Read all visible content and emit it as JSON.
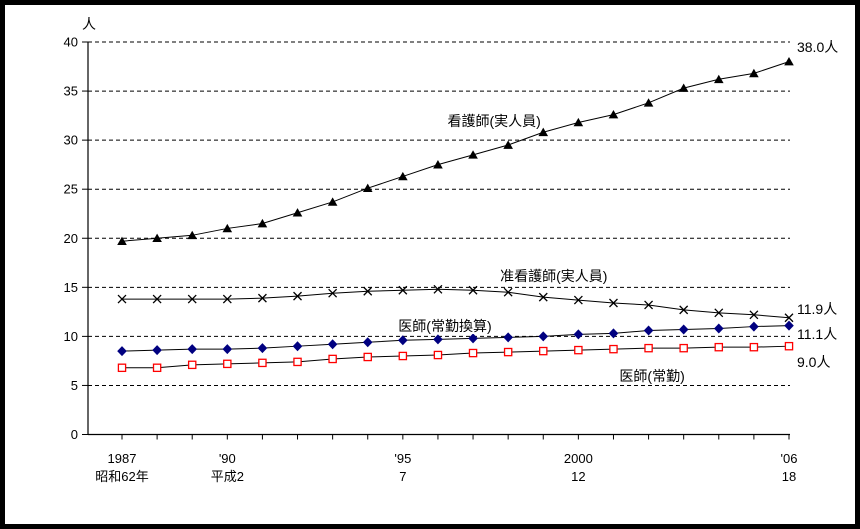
{
  "chart_data": {
    "type": "line",
    "title": "",
    "y_axis_unit": "人",
    "ylim": [
      0,
      40
    ],
    "y_ticks": [
      0,
      5,
      10,
      15,
      20,
      25,
      30,
      35,
      40
    ],
    "grid": "horizontal-dashed",
    "legend_position": "inline-labels",
    "x_years": [
      1987,
      1988,
      1989,
      1990,
      1991,
      1992,
      1993,
      1994,
      1995,
      1996,
      1997,
      1998,
      1999,
      2000,
      2001,
      2002,
      2003,
      2004,
      2005,
      2006
    ],
    "x_ticks": [
      {
        "year": 1987,
        "label": "1987",
        "era_label": "昭和62年"
      },
      {
        "year": 1990,
        "label": "'90",
        "era_label": "平成2"
      },
      {
        "year": 1995,
        "label": "'95",
        "era_label": "7"
      },
      {
        "year": 2000,
        "label": "2000",
        "era_label": "12"
      },
      {
        "year": 2006,
        "label": "'06",
        "era_label": "18"
      }
    ],
    "series": [
      {
        "id": "nurses_actual",
        "label": "看護師(実人員)",
        "end_label": "38.0人",
        "marker": "triangle",
        "marker_color": "#000000",
        "line_color": "#000000",
        "values": [
          19.7,
          20.0,
          20.3,
          21.0,
          21.5,
          22.6,
          23.7,
          25.1,
          26.3,
          27.5,
          28.5,
          29.5,
          30.8,
          31.8,
          32.6,
          33.8,
          35.3,
          36.2,
          36.8,
          38.0
        ]
      },
      {
        "id": "assistant_nurses_actual",
        "label": "准看護師(実人員)",
        "end_label": "11.9人",
        "marker": "x-cross",
        "marker_color": "#000000",
        "line_color": "#000000",
        "values": [
          13.8,
          13.8,
          13.8,
          13.8,
          13.9,
          14.1,
          14.4,
          14.6,
          14.7,
          14.8,
          14.7,
          14.5,
          14.0,
          13.7,
          13.4,
          13.2,
          12.7,
          12.4,
          12.2,
          11.9
        ]
      },
      {
        "id": "doctors_fte",
        "label": "医師(常勤換算)",
        "end_label": "11.1人",
        "marker": "diamond",
        "marker_color": "#000080",
        "line_color": "#000000",
        "values": [
          8.5,
          8.6,
          8.7,
          8.7,
          8.8,
          9.0,
          9.2,
          9.4,
          9.6,
          9.7,
          9.8,
          9.9,
          10.0,
          10.2,
          10.3,
          10.6,
          10.7,
          10.8,
          11.0,
          11.1
        ]
      },
      {
        "id": "doctors_fulltime",
        "label": "医師(常勤)",
        "end_label": "9.0人",
        "marker": "square-open",
        "marker_color": "#ff0000",
        "line_color": "#000000",
        "values": [
          6.8,
          6.8,
          7.1,
          7.2,
          7.3,
          7.4,
          7.7,
          7.9,
          8.0,
          8.1,
          8.3,
          8.4,
          8.5,
          8.6,
          8.7,
          8.8,
          8.8,
          8.9,
          8.9,
          9.0
        ]
      }
    ],
    "label_anchors": {
      "nurses_actual": {
        "x_year": 1997.6,
        "y_value": 31.9
      },
      "assistant_nurses_actual": {
        "x_year": 1999.3,
        "y_value": 16.2
      },
      "doctors_fte": {
        "x_year": 1996.2,
        "y_value": 11.1
      },
      "doctors_fulltime": {
        "x_year": 2002.1,
        "y_value": 5.95
      }
    },
    "end_label_x_year": 2006,
    "end_label_anchors": {
      "nurses_actual": 39.5,
      "assistant_nurses_actual": 12.8,
      "doctors_fte": 10.25,
      "doctors_fulltime": 7.4
    }
  }
}
